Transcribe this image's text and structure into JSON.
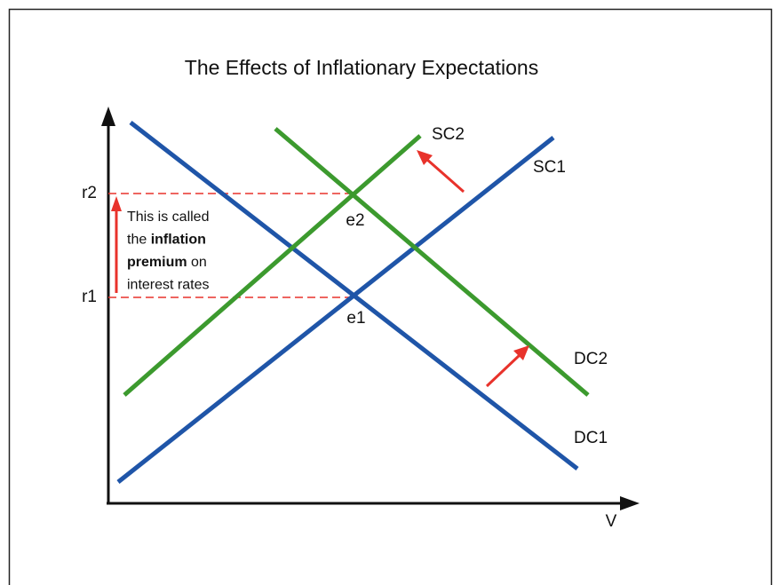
{
  "title": "The Effects of Inflationary Expectations",
  "axes": {
    "y_labels": [
      "r2",
      "r1"
    ],
    "x_label": "V"
  },
  "curves": [
    {
      "label": "SC2"
    },
    {
      "label": "SC1"
    },
    {
      "label": "DC2"
    },
    {
      "label": "DC1"
    }
  ],
  "points": [
    {
      "label": "e2"
    },
    {
      "label": "e1"
    }
  ],
  "annotation": {
    "lines": [
      [
        {
          "text": "This is called",
          "bold": false
        }
      ],
      [
        {
          "text": "the ",
          "bold": false
        },
        {
          "text": "inflation",
          "bold": true
        }
      ],
      [
        {
          "text": "premium",
          "bold": true
        },
        {
          "text": " on",
          "bold": false
        }
      ],
      [
        {
          "text": "interest rates",
          "bold": false
        }
      ]
    ]
  }
}
